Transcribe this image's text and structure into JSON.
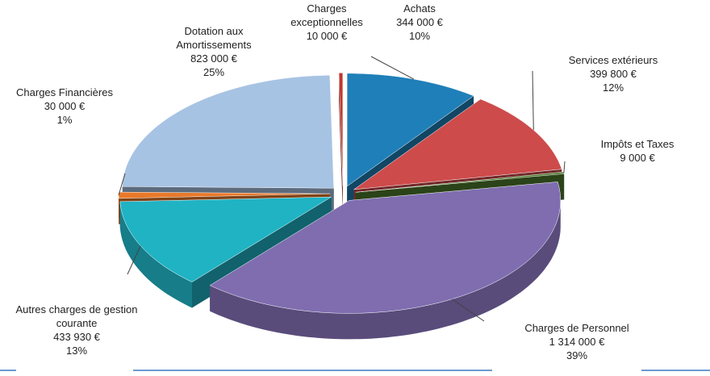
{
  "chart_data": {
    "type": "pie3d",
    "categories": [
      "Achats",
      "Services extérieurs",
      "Impôts et Taxes",
      "Charges de Personnel",
      "Autres charges de gestion courante",
      "Charges Financières",
      "Dotation aux Amortissements",
      "Charges exceptionnelles"
    ],
    "values": [
      344000,
      399800,
      9000,
      1314000,
      433930,
      30000,
      823000,
      10000
    ],
    "value_labels": [
      "344 000 €",
      "399 800 €",
      "9 000 €",
      "1 314 000 €",
      "433 930 €",
      "30 000 €",
      "823 000 €",
      "10 000 €"
    ],
    "percent_labels": [
      "10%",
      "12%",
      null,
      "39%",
      "13%",
      "1%",
      "25%",
      null
    ],
    "colors": [
      "#1f7fb8",
      "#cd4b4b",
      "#4e7a2e",
      "#7f6db0",
      "#1fb3c4",
      "#e9792a",
      "#a7c3e3",
      "#c0392b"
    ]
  }
}
